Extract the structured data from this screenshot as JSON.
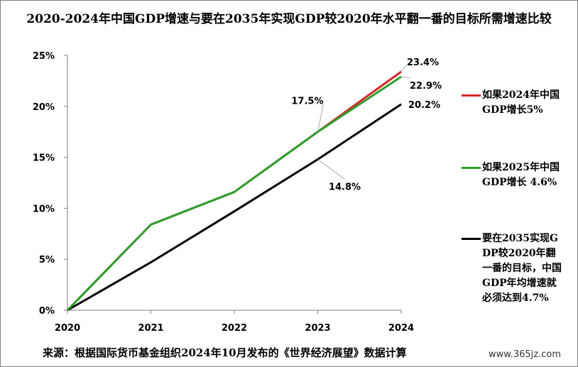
{
  "chart_data": {
    "type": "line",
    "title": "2020-2024年中国GDP增速与要在2035年实现GDP较2020年水平翻一番的目标所需增速比较",
    "x": [
      "2020",
      "2021",
      "2022",
      "2023",
      "2024"
    ],
    "yticks": [
      "0%",
      "5%",
      "10%",
      "15%",
      "20%",
      "25%"
    ],
    "ylim": [
      0,
      25
    ],
    "y_unit": "%",
    "series": [
      {
        "name": "如果2024年中国GDP增长5%",
        "color": "#d62728",
        "values": [
          0,
          8.4,
          11.6,
          17.5,
          23.4
        ]
      },
      {
        "name": "如果2025年中国GDP增长 4.6%",
        "color": "#2ca02c",
        "values": [
          0,
          8.4,
          11.6,
          17.5,
          22.9
        ]
      },
      {
        "name": "要在2035实现GDP较2020年翻一番的目标，中国GDP年均增速就必须达到4.7%",
        "color": "#000000",
        "values": [
          0,
          4.7,
          9.7,
          14.8,
          20.2
        ]
      }
    ],
    "data_labels": [
      {
        "text": "23.4%",
        "series": 0,
        "index": 4
      },
      {
        "text": "22.9%",
        "series": 1,
        "index": 4
      },
      {
        "text": "17.5%",
        "series": 1,
        "index": 3
      },
      {
        "text": "20.2%",
        "series": 2,
        "index": 4
      },
      {
        "text": "14.8%",
        "series": 2,
        "index": 3
      }
    ],
    "grid": false,
    "legend": "right"
  },
  "source_note": "来源：根据国际货币基金组织2024年10月发布的《世界经济展望》数据计算",
  "watermark": "www.365jz.com"
}
